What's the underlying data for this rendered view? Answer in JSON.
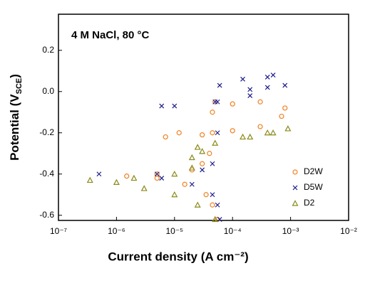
{
  "chart_data": {
    "type": "scatter",
    "annotation": "4 M NaCl, 80 °C",
    "xlabel": "Current density (A cm⁻²)",
    "ylabel": [
      "Potential (V",
      "SCE",
      ")"
    ],
    "log_x": true,
    "xlim": [
      1e-07,
      0.01
    ],
    "xticks": [
      {
        "value": 1e-07,
        "label": "10⁻⁷"
      },
      {
        "value": 1e-06,
        "label": "10⁻⁶"
      },
      {
        "value": 1e-05,
        "label": "10⁻⁵"
      },
      {
        "value": 0.0001,
        "label": "10⁻⁴"
      },
      {
        "value": 0.001,
        "label": "10⁻³"
      },
      {
        "value": 0.01,
        "label": "10⁻²"
      }
    ],
    "ylim": [
      -0.625,
      0.375
    ],
    "yticks": [
      -0.6,
      -0.4,
      -0.2,
      {
        "value": 0,
        "label": "0.0"
      },
      0.2
    ],
    "legend": "lower right",
    "series": [
      {
        "name": "D2W",
        "color": "#f08020",
        "marker": "circle",
        "x": [
          5.5e-05,
          4.5e-05,
          3.5e-05,
          1.5e-05,
          5e-06,
          1.5e-06,
          5e-06,
          2e-05,
          3e-05,
          4e-05,
          4.5e-05,
          4.5e-05,
          5e-05,
          0.0001,
          0.0003,
          0.0008,
          0.0007,
          0.0003,
          0.0001,
          3e-05,
          7e-06,
          1.2e-05
        ],
        "values": [
          -0.62,
          -0.55,
          -0.5,
          -0.45,
          -0.42,
          -0.41,
          -0.4,
          -0.38,
          -0.35,
          -0.3,
          -0.2,
          -0.1,
          -0.05,
          -0.06,
          -0.05,
          -0.08,
          -0.12,
          -0.17,
          -0.19,
          -0.21,
          -0.22,
          -0.2
        ]
      },
      {
        "name": "D5W",
        "color": "#1a1a8c",
        "marker": "x",
        "x": [
          6e-05,
          5.5e-05,
          4.5e-05,
          2e-05,
          6e-06,
          5e-07,
          5e-06,
          3e-05,
          4.5e-05,
          5.5e-05,
          5.5e-05,
          6e-05,
          0.00015,
          0.0004,
          0.0005,
          0.0008,
          0.0004,
          0.0002,
          0.0002,
          5e-05,
          1e-05,
          6e-06
        ],
        "values": [
          -0.62,
          -0.55,
          -0.5,
          -0.45,
          -0.42,
          -0.4,
          -0.4,
          -0.38,
          -0.35,
          -0.2,
          -0.05,
          0.03,
          0.06,
          0.07,
          0.08,
          0.03,
          0.02,
          0.01,
          -0.02,
          -0.05,
          -0.07,
          -0.07
        ]
      },
      {
        "name": "D2",
        "color": "#8a8a1a",
        "marker": "triangle",
        "x": [
          5e-05,
          2.5e-05,
          1e-05,
          3e-06,
          1e-06,
          3.5e-07,
          2e-06,
          1e-05,
          2e-05,
          2e-05,
          2.5e-05,
          3e-05,
          5e-05,
          0.00015,
          0.0004,
          0.0009,
          0.0005,
          0.0002
        ],
        "values": [
          -0.62,
          -0.55,
          -0.5,
          -0.47,
          -0.44,
          -0.43,
          -0.42,
          -0.4,
          -0.37,
          -0.32,
          -0.27,
          -0.29,
          -0.25,
          -0.22,
          -0.2,
          -0.18,
          -0.2,
          -0.22
        ]
      }
    ]
  }
}
